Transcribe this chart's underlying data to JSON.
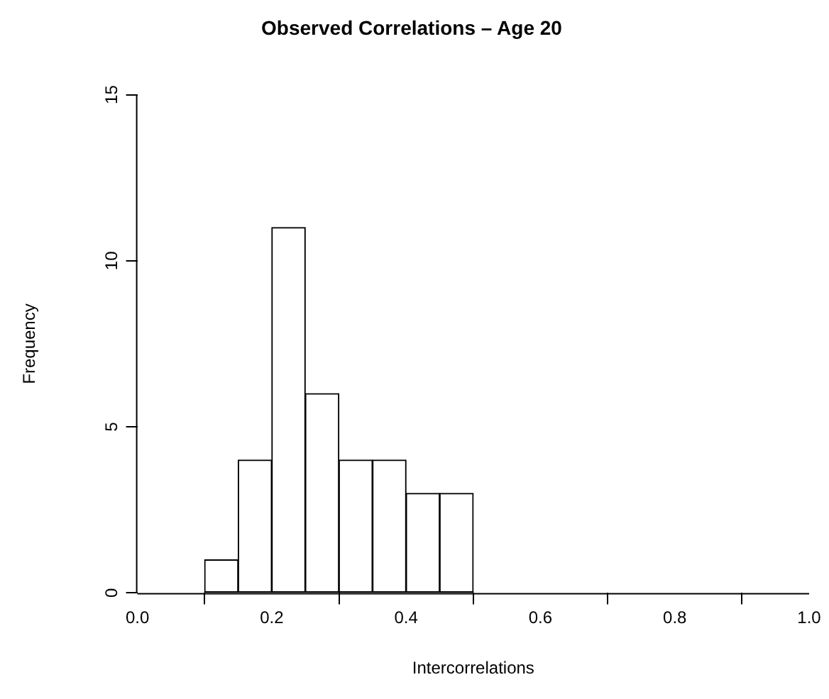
{
  "chart_data": {
    "type": "histogram",
    "title": "Observed Correlations – Age 20",
    "xlabel": "Intercorrelations",
    "ylabel": "Frequency",
    "bins": [
      0.1,
      0.15,
      0.2,
      0.25,
      0.3,
      0.35,
      0.4,
      0.45,
      0.5
    ],
    "values": [
      1,
      4,
      11,
      6,
      4,
      4,
      3,
      3
    ],
    "color": "#ffffff",
    "xlim": [
      0,
      1
    ],
    "xticks": [
      {
        "value": 0,
        "label": "0.0"
      },
      {
        "value": 0.2,
        "label": "0.2"
      },
      {
        "value": 0.4,
        "label": "0.4"
      },
      {
        "value": 0.6,
        "label": "0.6"
      },
      {
        "value": 0.8,
        "label": "0.8"
      },
      {
        "value": 1,
        "label": "1.0"
      }
    ],
    "ylim": [
      0,
      15
    ],
    "yticks": [
      0,
      5,
      10,
      15
    ],
    "grid": false,
    "legend": false
  }
}
